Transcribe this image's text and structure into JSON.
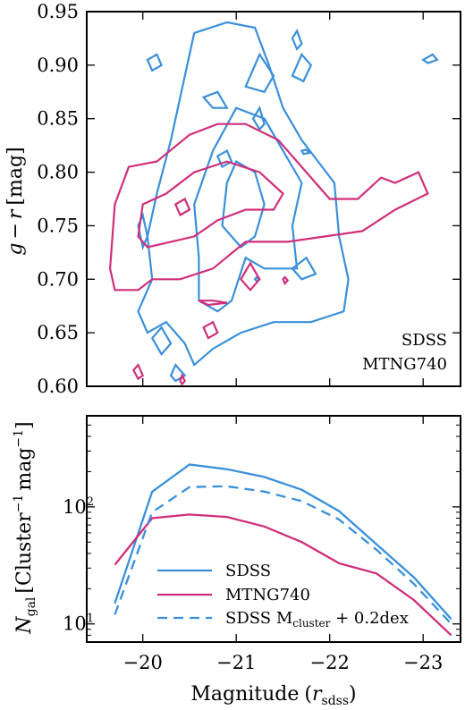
{
  "colors": {
    "sdss": "#3a8fdb",
    "mtng": "#cf2f7a"
  },
  "chart_data": [
    {
      "type": "contour",
      "ylabel_parts": {
        "g": "g",
        "minus": "−",
        "r": "r",
        "unit": "[mag]"
      },
      "xlim": [
        -19.4,
        -23.4
      ],
      "ylim": [
        0.6,
        0.95
      ],
      "x_ticks": [
        -20,
        -21,
        -22,
        -23
      ],
      "y_ticks": [
        "0.60",
        "0.65",
        "0.70",
        "0.75",
        "0.80",
        "0.85",
        "0.90",
        "0.95"
      ],
      "legend": {
        "placement": "bottom-right",
        "entries": [
          "SDSS",
          "MTNG740"
        ]
      },
      "series": [
        {
          "name": "SDSS",
          "color": "sdss",
          "contours": [
            [
              [
                -20.3,
                0.83
              ],
              [
                -20.4,
                0.87
              ],
              [
                -20.55,
                0.93
              ],
              [
                -20.9,
                0.94
              ],
              [
                -21.2,
                0.935
              ],
              [
                -21.35,
                0.9
              ],
              [
                -21.5,
                0.86
              ],
              [
                -21.7,
                0.83
              ],
              [
                -22.05,
                0.79
              ],
              [
                -22.1,
                0.74
              ],
              [
                -22.2,
                0.7
              ],
              [
                -22.15,
                0.67
              ],
              [
                -21.8,
                0.66
              ],
              [
                -21.4,
                0.66
              ],
              [
                -21.05,
                0.65
              ],
              [
                -20.75,
                0.635
              ],
              [
                -20.55,
                0.62
              ],
              [
                -20.45,
                0.64
              ],
              [
                -20.25,
                0.66
              ],
              [
                -20.05,
                0.65
              ],
              [
                -19.95,
                0.67
              ],
              [
                -20.1,
                0.7
              ],
              [
                -20.05,
                0.74
              ],
              [
                -20.15,
                0.78
              ],
              [
                -20.3,
                0.83
              ]
            ],
            [
              [
                -20.6,
                0.68
              ],
              [
                -20.6,
                0.72
              ],
              [
                -20.55,
                0.77
              ],
              [
                -20.75,
                0.82
              ],
              [
                -21.0,
                0.86
              ],
              [
                -21.3,
                0.85
              ],
              [
                -21.5,
                0.82
              ],
              [
                -21.7,
                0.79
              ],
              [
                -21.6,
                0.75
              ],
              [
                -21.65,
                0.71
              ],
              [
                -21.3,
                0.71
              ],
              [
                -21.1,
                0.72
              ],
              [
                -20.95,
                0.68
              ],
              [
                -20.8,
                0.67
              ],
              [
                -20.6,
                0.68
              ]
            ],
            [
              [
                -20.85,
                0.75
              ],
              [
                -20.9,
                0.79
              ],
              [
                -21.0,
                0.81
              ],
              [
                -21.2,
                0.8
              ],
              [
                -21.3,
                0.77
              ],
              [
                -21.2,
                0.74
              ],
              [
                -21.05,
                0.73
              ],
              [
                -20.85,
                0.75
              ]
            ],
            [
              [
                -20.05,
                0.905
              ],
              [
                -20.15,
                0.91
              ],
              [
                -20.2,
                0.9
              ],
              [
                -20.1,
                0.895
              ],
              [
                -20.05,
                0.905
              ]
            ],
            [
              [
                -21.6,
                0.89
              ],
              [
                -21.7,
                0.91
              ],
              [
                -21.8,
                0.9
              ],
              [
                -21.72,
                0.885
              ],
              [
                -21.6,
                0.89
              ]
            ],
            [
              [
                -20.65,
                0.87
              ],
              [
                -20.8,
                0.875
              ],
              [
                -20.9,
                0.86
              ],
              [
                -20.75,
                0.86
              ],
              [
                -20.65,
                0.87
              ]
            ],
            [
              [
                -21.1,
                0.88
              ],
              [
                -21.25,
                0.91
              ],
              [
                -21.4,
                0.89
              ],
              [
                -21.3,
                0.875
              ],
              [
                -21.1,
                0.88
              ]
            ],
            [
              [
                -21.6,
                0.925
              ],
              [
                -21.65,
                0.932
              ],
              [
                -21.7,
                0.92
              ],
              [
                -21.65,
                0.915
              ],
              [
                -21.6,
                0.925
              ]
            ],
            [
              [
                -23.0,
                0.905
              ],
              [
                -23.1,
                0.91
              ],
              [
                -23.15,
                0.905
              ],
              [
                -23.05,
                0.902
              ],
              [
                -23.0,
                0.905
              ]
            ],
            [
              [
                -21.18,
                0.85
              ],
              [
                -21.25,
                0.86
              ],
              [
                -21.3,
                0.845
              ],
              [
                -21.25,
                0.84
              ],
              [
                -21.18,
                0.85
              ]
            ],
            [
              [
                -20.8,
                0.815
              ],
              [
                -20.9,
                0.82
              ],
              [
                -20.95,
                0.81
              ],
              [
                -20.85,
                0.805
              ],
              [
                -20.8,
                0.815
              ]
            ],
            [
              [
                -21.7,
                0.82
              ],
              [
                -21.75,
                0.821
              ],
              [
                -21.78,
                0.818
              ],
              [
                -21.72,
                0.817
              ],
              [
                -21.7,
                0.82
              ]
            ],
            [
              [
                -19.95,
                0.75
              ],
              [
                -20.0,
                0.76
              ],
              [
                -20.05,
                0.74
              ],
              [
                -20.0,
                0.73
              ],
              [
                -19.95,
                0.75
              ]
            ],
            [
              [
                -21.6,
                0.71
              ],
              [
                -21.75,
                0.72
              ],
              [
                -21.85,
                0.705
              ],
              [
                -21.7,
                0.7
              ],
              [
                -21.6,
                0.71
              ]
            ],
            [
              [
                -20.1,
                0.645
              ],
              [
                -20.2,
                0.655
              ],
              [
                -20.3,
                0.64
              ],
              [
                -20.2,
                0.63
              ],
              [
                -20.1,
                0.645
              ]
            ],
            [
              [
                -20.3,
                0.61
              ],
              [
                -20.35,
                0.62
              ],
              [
                -20.45,
                0.61
              ],
              [
                -20.35,
                0.605
              ],
              [
                -20.3,
                0.61
              ]
            ],
            [
              [
                -21.2,
                0.7
              ],
              [
                -21.22,
                0.702
              ],
              [
                -21.24,
                0.7
              ],
              [
                -21.22,
                0.698
              ],
              [
                -21.2,
                0.7
              ]
            ]
          ]
        },
        {
          "name": "MTNG740",
          "color": "mtng",
          "contours": [
            [
              [
                -19.65,
                0.71
              ],
              [
                -19.7,
                0.77
              ],
              [
                -19.85,
                0.805
              ],
              [
                -20.15,
                0.81
              ],
              [
                -20.5,
                0.835
              ],
              [
                -20.8,
                0.845
              ],
              [
                -21.1,
                0.845
              ],
              [
                -21.45,
                0.83
              ],
              [
                -21.75,
                0.8
              ],
              [
                -22.0,
                0.775
              ],
              [
                -22.3,
                0.775
              ],
              [
                -22.55,
                0.795
              ],
              [
                -22.7,
                0.79
              ],
              [
                -22.95,
                0.8
              ],
              [
                -23.05,
                0.78
              ],
              [
                -22.7,
                0.765
              ],
              [
                -22.35,
                0.745
              ],
              [
                -21.95,
                0.74
              ],
              [
                -21.55,
                0.735
              ],
              [
                -21.1,
                0.735
              ],
              [
                -20.75,
                0.71
              ],
              [
                -20.4,
                0.7
              ],
              [
                -20.1,
                0.7
              ],
              [
                -19.95,
                0.69
              ],
              [
                -19.7,
                0.69
              ],
              [
                -19.65,
                0.71
              ]
            ],
            [
              [
                -19.95,
                0.74
              ],
              [
                -20.0,
                0.77
              ],
              [
                -20.25,
                0.78
              ],
              [
                -20.55,
                0.8
              ],
              [
                -20.9,
                0.81
              ],
              [
                -21.25,
                0.8
              ],
              [
                -21.5,
                0.78
              ],
              [
                -21.4,
                0.765
              ],
              [
                -21.1,
                0.765
              ],
              [
                -20.8,
                0.755
              ],
              [
                -20.55,
                0.74
              ],
              [
                -20.3,
                0.735
              ],
              [
                -20.05,
                0.73
              ],
              [
                -19.95,
                0.74
              ]
            ],
            [
              [
                -20.35,
                0.77
              ],
              [
                -20.45,
                0.775
              ],
              [
                -20.5,
                0.765
              ],
              [
                -20.4,
                0.76
              ],
              [
                -20.35,
                0.77
              ]
            ],
            [
              [
                -20.6,
                0.68
              ],
              [
                -20.75,
                0.68
              ],
              [
                -20.9,
                0.678
              ],
              [
                -20.7,
                0.676
              ],
              [
                -20.6,
                0.68
              ]
            ],
            [
              [
                -21.05,
                0.7
              ],
              [
                -21.15,
                0.715
              ],
              [
                -21.25,
                0.7
              ],
              [
                -21.15,
                0.69
              ],
              [
                -21.05,
                0.7
              ]
            ],
            [
              [
                -21.5,
                0.7
              ],
              [
                -21.52,
                0.702
              ],
              [
                -21.55,
                0.699
              ],
              [
                -21.52,
                0.696
              ],
              [
                -21.5,
                0.7
              ]
            ],
            [
              [
                -20.65,
                0.655
              ],
              [
                -20.75,
                0.66
              ],
              [
                -20.8,
                0.65
              ],
              [
                -20.7,
                0.645
              ],
              [
                -20.65,
                0.655
              ]
            ],
            [
              [
                -19.9,
                0.615
              ],
              [
                -19.95,
                0.62
              ],
              [
                -20.0,
                0.61
              ],
              [
                -19.95,
                0.607
              ],
              [
                -19.9,
                0.615
              ]
            ],
            [
              [
                -20.4,
                0.605
              ],
              [
                -20.42,
                0.61
              ],
              [
                -20.45,
                0.605
              ],
              [
                -20.42,
                0.602
              ],
              [
                -20.4,
                0.605
              ]
            ]
          ]
        }
      ]
    },
    {
      "type": "line",
      "xlabel_parts": {
        "text": "Magnitude",
        "var": "r",
        "sub": "sdss"
      },
      "ylabel_parts": {
        "n": "N",
        "n_sub": "gal",
        "cluster": "Cluster",
        "mag": "mag",
        "exp": "−1"
      },
      "xlim": [
        -19.4,
        -23.4
      ],
      "ylim": [
        7,
        600
      ],
      "yscale": "log",
      "x_ticks": [
        -20,
        -21,
        -22,
        -23
      ],
      "y_ticks": [
        {
          "value": 10,
          "base": "10",
          "exp": "1"
        },
        {
          "value": 100,
          "base": "10",
          "exp": "2"
        }
      ],
      "legend": {
        "placement": "bottom-left",
        "entries": [
          {
            "label": "SDSS",
            "series": 0
          },
          {
            "label": "MTNG740",
            "series": 1
          },
          {
            "label_main": "SDSS M",
            "label_sub": "cluster",
            "label_tail": " + 0.2dex",
            "series": 2
          }
        ]
      },
      "series": [
        {
          "name": "SDSS",
          "color": "sdss",
          "dash": false,
          "x": [
            -19.7,
            -20.1,
            -20.5,
            -20.9,
            -21.3,
            -21.7,
            -22.1,
            -22.5,
            -22.9,
            -23.3
          ],
          "y": [
            15,
            135,
            230,
            210,
            180,
            140,
            92,
            48,
            25,
            11
          ]
        },
        {
          "name": "MTNG740",
          "color": "mtng",
          "dash": false,
          "x": [
            -19.7,
            -20.1,
            -20.5,
            -20.9,
            -21.3,
            -21.7,
            -22.1,
            -22.5,
            -22.9,
            -23.3
          ],
          "y": [
            32,
            80,
            86,
            82,
            68,
            50,
            33,
            27,
            16,
            8
          ]
        },
        {
          "name": "SDSS Mcluster + 0.2dex",
          "color": "sdss",
          "dash": true,
          "x": [
            -19.7,
            -20.1,
            -20.5,
            -20.9,
            -21.3,
            -21.7,
            -22.1,
            -22.5,
            -22.9,
            -23.3
          ],
          "y": [
            12,
            90,
            148,
            150,
            135,
            112,
            78,
            43,
            22,
            10
          ]
        }
      ]
    }
  ]
}
